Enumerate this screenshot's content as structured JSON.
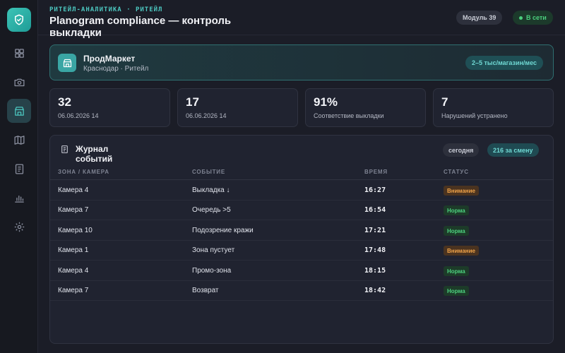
{
  "header": {
    "breadcrumb": "РИТЕЙЛ-АНАЛИТИКА · РИТЕЙЛ",
    "title": "Planogram compliance — контроль выкладки",
    "module_label": "Модуль 39",
    "online_label": "В сети"
  },
  "sidebar": {
    "items": [
      {
        "icon": "dashboard-icon"
      },
      {
        "icon": "camera-icon"
      },
      {
        "icon": "store-icon",
        "active": true
      },
      {
        "icon": "map-icon"
      },
      {
        "icon": "document-icon"
      },
      {
        "icon": "chart-icon"
      },
      {
        "icon": "gear-icon"
      }
    ]
  },
  "store": {
    "name": "ПродМаркет",
    "subtitle": "Краснодар · Ритейл",
    "badge": "2–5 тыс/магазин/мес"
  },
  "stats": [
    {
      "value": "32",
      "label": "06.06.2026 14"
    },
    {
      "value": "17",
      "label": "06.06.2026 14"
    },
    {
      "value": "91%",
      "label": "Соответствие выкладки"
    },
    {
      "value": "7",
      "label": "Нарушений устранено"
    }
  ],
  "journal": {
    "title": "Журнал событий",
    "today_label": "сегодня",
    "count_label": "216 за смену",
    "columns": [
      "ЗОНА / КАМЕРА",
      "СОБЫТИЕ",
      "ВРЕМЯ",
      "СТАТУС"
    ],
    "rows": [
      {
        "zone": "Камера 4",
        "event": "Выкладка ↓",
        "time": "16:27",
        "status": "Внимание",
        "level": "warn"
      },
      {
        "zone": "Камера 7",
        "event": "Очередь >5",
        "time": "16:54",
        "status": "Норма",
        "level": "ok"
      },
      {
        "zone": "Камера 10",
        "event": "Подозрение кражи",
        "time": "17:21",
        "status": "Норма",
        "level": "ok"
      },
      {
        "zone": "Камера 1",
        "event": "Зона пустует",
        "time": "17:48",
        "status": "Внимание",
        "level": "warn"
      },
      {
        "zone": "Камера 4",
        "event": "Промо-зона",
        "time": "18:15",
        "status": "Норма",
        "level": "ok"
      },
      {
        "zone": "Камера 7",
        "event": "Возврат",
        "time": "18:42",
        "status": "Норма",
        "level": "ok"
      }
    ]
  },
  "colors": {
    "accent": "#3cc4b6",
    "warning": "#f0a348",
    "success": "#4cd07e",
    "background": "#1b1d27"
  }
}
